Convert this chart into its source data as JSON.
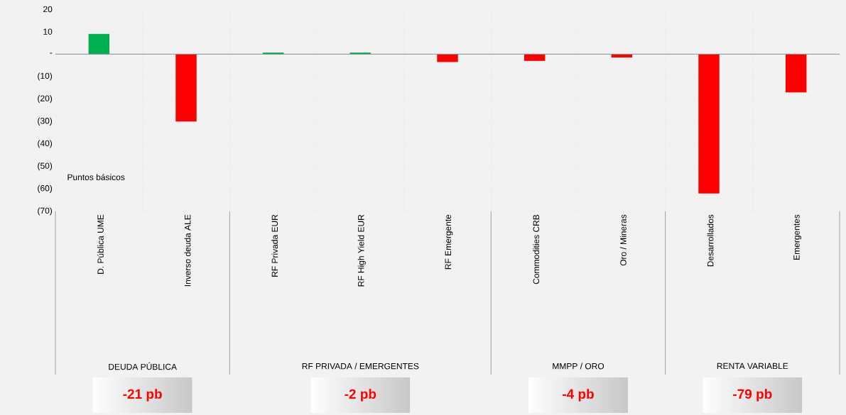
{
  "chart_data": {
    "type": "bar",
    "categories": [
      "D. Pública UME",
      "Inverso deuda ALE",
      "RF Privada EUR",
      "RF High Yield EUR",
      "RF Emergente",
      "Commodities CRB",
      "Oro / Mineras",
      "Desarrollados",
      "Emergentes"
    ],
    "values": [
      9,
      -30,
      0.7,
      0.7,
      -3.5,
      -3,
      -1.5,
      -62,
      -17
    ],
    "colors": [
      "#00b050",
      "#ff0000",
      "#00b050",
      "#00b050",
      "#ff0000",
      "#ff0000",
      "#ff0000",
      "#ff0000",
      "#ff0000"
    ],
    "ylim": [
      -70,
      20
    ],
    "yticks": [
      {
        "value": 20,
        "label": "20"
      },
      {
        "value": 10,
        "label": "10"
      },
      {
        "value": 0,
        "label": "-"
      },
      {
        "value": -10,
        "label": "(10)"
      },
      {
        "value": -20,
        "label": "(20)"
      },
      {
        "value": -30,
        "label": "(30)"
      },
      {
        "value": -40,
        "label": "(40)"
      },
      {
        "value": -50,
        "label": "(50)"
      },
      {
        "value": -60,
        "label": "(60)"
      },
      {
        "value": -70,
        "label": "(70)"
      }
    ],
    "grid": true,
    "annotations": [
      "Puntos básicos",
      "DEUDA PÚBLICA",
      "RF PRIVADA / EMERGENTES",
      "MMPP / ORO",
      "RENTA VARIABLE",
      "-21 pb",
      "-2 pb",
      "-4 pb",
      "-79 pb"
    ]
  }
}
